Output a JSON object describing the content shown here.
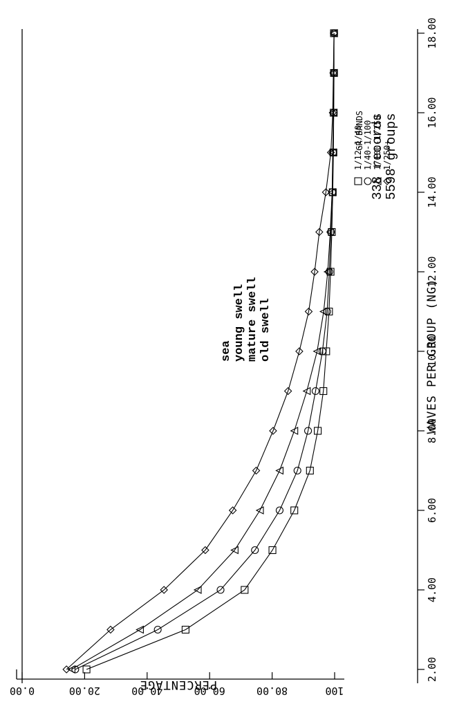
{
  "chart_data": {
    "type": "line",
    "orientation": "rotated-90-clockwise",
    "xlabel": "WAVES PER GROUP (NG)",
    "ylabel": "PERCENTAGE",
    "xlim": [
      2,
      18
    ],
    "ylim": [
      0,
      100
    ],
    "x_ticks": [
      "2.00",
      "4.00",
      "6.00",
      "8.00",
      "10.00",
      "12.00",
      "14.00",
      "16.00",
      "18.00"
    ],
    "y_ticks": [
      "0.00",
      "20.00",
      "40.00",
      "60.00",
      "80.00",
      "100"
    ],
    "grid": false,
    "legend_title": "GR BANDS",
    "series": [
      {
        "name": "1/12-1/40",
        "description": "sea",
        "marker": "square",
        "x": [
          2,
          3,
          4,
          5,
          6,
          7,
          8,
          9,
          10,
          11,
          12,
          13,
          14,
          15,
          16,
          17,
          18
        ],
        "values": [
          20.6,
          52.3,
          71.2,
          80.1,
          87.1,
          92.1,
          94.6,
          96.4,
          97.3,
          98.2,
          98.7,
          99.1,
          99.4,
          99.6,
          99.7,
          99.8,
          99.8
        ]
      },
      {
        "name": "1/40-1/100",
        "description": "young swell",
        "marker": "circle",
        "x": [
          2,
          3,
          4,
          5,
          6,
          7,
          8,
          9,
          10,
          11,
          12,
          13,
          14,
          15,
          16,
          17,
          18
        ],
        "values": [
          17.0,
          43.4,
          63.5,
          74.5,
          82.4,
          88.1,
          91.5,
          93.9,
          96.1,
          97.6,
          98.3,
          98.8,
          99.2,
          99.5,
          99.7,
          99.7,
          99.8
        ]
      },
      {
        "name": "1/100-1/250",
        "description": "mature swell",
        "marker": "triangle",
        "x": [
          2,
          3,
          4,
          5,
          6,
          7,
          8,
          9,
          10,
          11,
          12,
          13,
          14,
          15,
          16,
          17,
          18
        ],
        "values": [
          15.8,
          37.7,
          56.2,
          68.0,
          76.1,
          82.4,
          87.1,
          91.1,
          94.4,
          96.5,
          97.8,
          98.6,
          99.2,
          99.4,
          99.6,
          99.7,
          99.8
        ]
      },
      {
        "name": "1/250+",
        "description": "old swell",
        "marker": "diamond",
        "x": [
          2,
          3,
          4,
          5,
          6,
          7,
          8,
          9,
          10,
          11,
          12,
          13,
          14,
          15,
          16,
          17,
          18
        ],
        "values": [
          14.2,
          28.3,
          45.4,
          58.6,
          67.4,
          74.9,
          80.3,
          85.1,
          88.7,
          91.7,
          93.6,
          95.1,
          97.2,
          98.8,
          99.4,
          99.6,
          99.8
        ]
      }
    ],
    "descriptions_title": "",
    "stats": {
      "records": "338 records",
      "groups": "5598 groups"
    }
  }
}
